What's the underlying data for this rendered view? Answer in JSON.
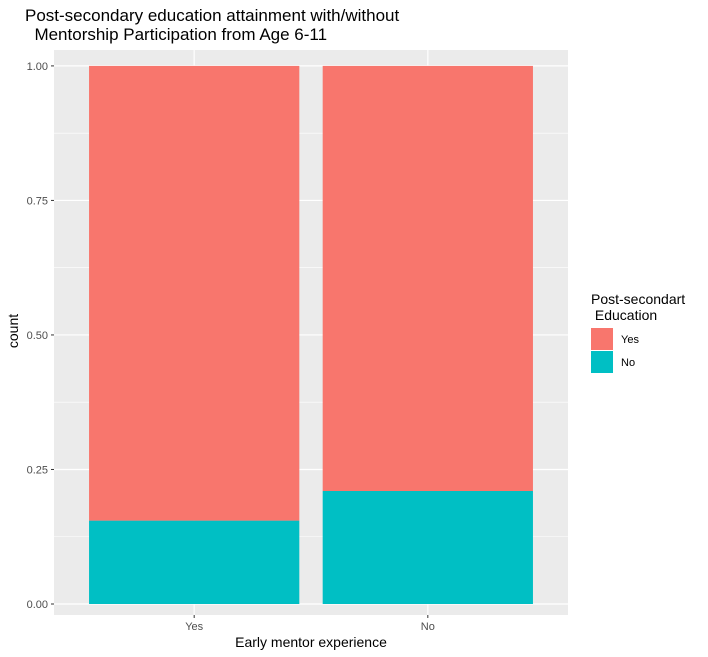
{
  "chart_data": {
    "type": "bar",
    "stacked": true,
    "title_lines": [
      "Post-secondary education attainment with/without",
      "  Mentorship Participation from Age 6-11"
    ],
    "xlabel": "Early mentor experience",
    "ylabel": "count",
    "categories": [
      "Yes",
      "No"
    ],
    "series": [
      {
        "name": "Yes",
        "color": "#F8766D",
        "values": [
          0.845,
          0.79
        ]
      },
      {
        "name": "No",
        "color": "#00BFC4",
        "values": [
          0.155,
          0.21
        ]
      }
    ],
    "ylim": [
      0,
      1.05
    ],
    "yticks": [
      0,
      0.25,
      0.5,
      0.75,
      1.0
    ],
    "ytick_labels": [
      "0.00",
      "0.25",
      "0.50",
      "0.75",
      "1.00"
    ],
    "grid": true,
    "legend": {
      "title_lines": [
        "Post-secondart",
        " Education"
      ],
      "position": "right"
    },
    "colors": {
      "panel": "#EBEBEB",
      "grid": "#FFFFFF"
    }
  }
}
